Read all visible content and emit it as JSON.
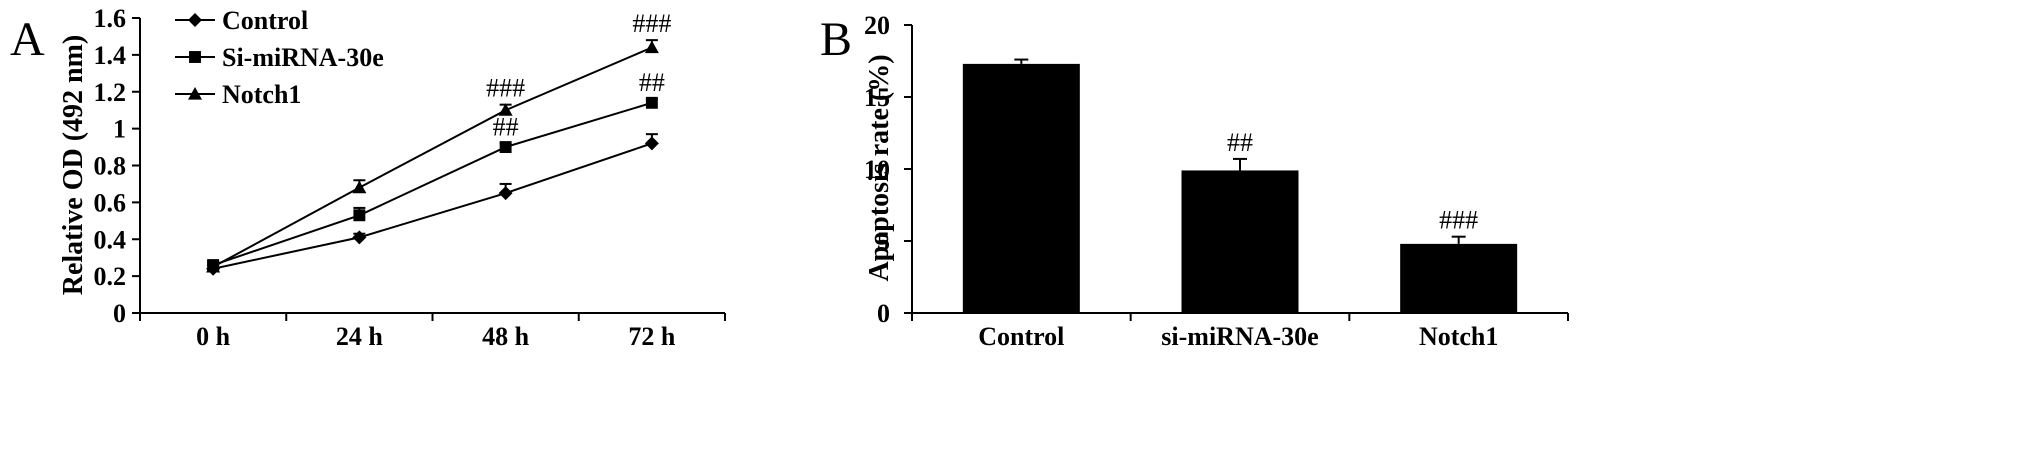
{
  "chart_data": [
    {
      "panel": "A",
      "type": "line",
      "title": "",
      "xlabel": "",
      "ylabel": "Relative OD (492 nm)",
      "categories": [
        "0 h",
        "24 h",
        "48 h",
        "72 h"
      ],
      "ylim": [
        0,
        1.6
      ],
      "yticks": [
        "0",
        "0.2",
        "0.4",
        "0.6",
        "0.8",
        "1",
        "1.2",
        "1.4",
        "1.6"
      ],
      "grid": false,
      "legend_position": "top-left",
      "series": [
        {
          "name": "Control",
          "marker": "diamond",
          "values": [
            0.24,
            0.41,
            0.65,
            0.92
          ],
          "errors": [
            0.02,
            0.02,
            0.05,
            0.05
          ],
          "annotations": [
            "",
            "",
            "",
            ""
          ]
        },
        {
          "name": "Si-miRNA-30e",
          "marker": "square",
          "values": [
            0.26,
            0.53,
            0.9,
            1.14
          ],
          "errors": [
            0.02,
            0.04,
            0.02,
            0.02
          ],
          "annotations": [
            "",
            "",
            "##",
            "##"
          ]
        },
        {
          "name": "Notch1",
          "marker": "triangle",
          "values": [
            0.25,
            0.68,
            1.1,
            1.44
          ],
          "errors": [
            0.02,
            0.04,
            0.03,
            0.04
          ],
          "annotations": [
            "",
            "",
            "###",
            "###"
          ]
        }
      ]
    },
    {
      "panel": "B",
      "type": "bar",
      "title": "",
      "xlabel": "",
      "ylabel": "Apoptosis rate (%)",
      "categories": [
        "Control",
        "si-miRNA-30e",
        "Notch1"
      ],
      "values": [
        17.3,
        9.9,
        4.8
      ],
      "errors": [
        0.3,
        0.8,
        0.5
      ],
      "annotations": [
        "",
        "##",
        "###"
      ],
      "ylim": [
        0,
        20
      ],
      "yticks": [
        "0",
        "5",
        "10",
        "15",
        "20"
      ],
      "grid": false,
      "bar_color": "#000000"
    }
  ]
}
